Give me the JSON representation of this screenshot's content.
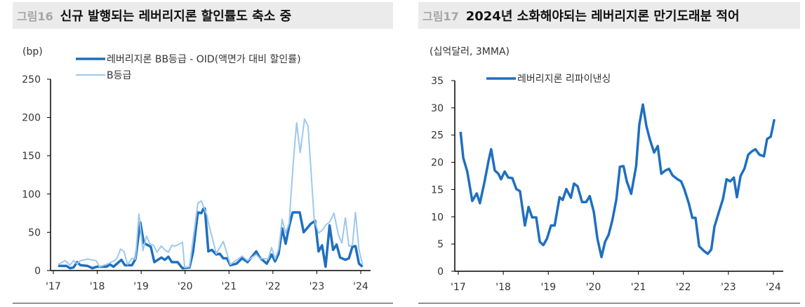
{
  "chart_data": [
    {
      "type": "line",
      "figure_label": "그림16",
      "title": "신규 발행되는 레버리지론 할인률도 축소 중",
      "unit": "(bp)",
      "ylim": [
        0,
        250
      ],
      "yticks": [
        0,
        50,
        100,
        150,
        200,
        250
      ],
      "xlim": [
        2017,
        2024
      ],
      "xticks": [
        2017,
        2018,
        2019,
        2020,
        2021,
        2022,
        2023,
        2024
      ],
      "xtick_labels": [
        "'17",
        "'18",
        "'19",
        "'20",
        "'21",
        "'22",
        "'23",
        "'24"
      ],
      "legend": "top-left",
      "grid": false,
      "series": [
        {
          "name": "레버리지론 BB등급 - OID(액면가 대비 할인률)",
          "color": "#1f6fbf",
          "width": 3.5,
          "points": [
            [
              2017.11,
              6
            ],
            [
              2017.3,
              6
            ],
            [
              2017.38,
              3
            ],
            [
              2017.46,
              4
            ],
            [
              2017.54,
              11
            ],
            [
              2017.62,
              7
            ],
            [
              2017.78,
              6
            ],
            [
              2017.89,
              3
            ],
            [
              2017.99,
              5
            ],
            [
              2018.21,
              5
            ],
            [
              2018.29,
              8
            ],
            [
              2018.37,
              5
            ],
            [
              2018.55,
              14
            ],
            [
              2018.63,
              7
            ],
            [
              2018.79,
              7
            ],
            [
              2018.87,
              15
            ],
            [
              2018.98,
              63
            ],
            [
              2019.06,
              36
            ],
            [
              2019.22,
              31
            ],
            [
              2019.3,
              11
            ],
            [
              2019.38,
              14
            ],
            [
              2019.46,
              17
            ],
            [
              2019.54,
              14
            ],
            [
              2019.62,
              18
            ],
            [
              2019.7,
              11
            ],
            [
              2019.83,
              11
            ],
            [
              2019.94,
              3
            ],
            [
              2020.1,
              4
            ],
            [
              2020.18,
              24
            ],
            [
              2020.29,
              76
            ],
            [
              2020.37,
              75
            ],
            [
              2020.42,
              81
            ],
            [
              2020.45,
              81
            ],
            [
              2020.53,
              25
            ],
            [
              2020.61,
              27
            ],
            [
              2020.71,
              21
            ],
            [
              2020.79,
              22
            ],
            [
              2020.87,
              16
            ],
            [
              2020.95,
              16
            ],
            [
              2021.03,
              7
            ],
            [
              2021.17,
              9
            ],
            [
              2021.3,
              16
            ],
            [
              2021.42,
              11
            ],
            [
              2021.62,
              25
            ],
            [
              2021.7,
              17
            ],
            [
              2021.86,
              9
            ],
            [
              2021.97,
              21
            ],
            [
              2022.05,
              12
            ],
            [
              2022.13,
              22
            ],
            [
              2022.21,
              55
            ],
            [
              2022.29,
              35
            ],
            [
              2022.37,
              58
            ],
            [
              2022.45,
              76
            ],
            [
              2022.61,
              76
            ],
            [
              2022.7,
              50
            ],
            [
              2022.86,
              61
            ],
            [
              2022.96,
              65
            ],
            [
              2023.04,
              25
            ],
            [
              2023.12,
              33
            ],
            [
              2023.2,
              5
            ],
            [
              2023.29,
              59
            ],
            [
              2023.37,
              27
            ],
            [
              2023.45,
              34
            ],
            [
              2023.53,
              17
            ],
            [
              2023.65,
              14
            ],
            [
              2023.73,
              16
            ],
            [
              2023.81,
              31
            ],
            [
              2023.88,
              32
            ],
            [
              2023.96,
              9
            ],
            [
              2024.04,
              5
            ]
          ]
        },
        {
          "name": "B등급",
          "color": "#9dc8ee",
          "width": 2,
          "points": [
            [
              2017.11,
              8
            ],
            [
              2017.27,
              13
            ],
            [
              2017.38,
              7
            ],
            [
              2017.46,
              13
            ],
            [
              2017.54,
              9
            ],
            [
              2017.62,
              13
            ],
            [
              2017.78,
              15
            ],
            [
              2017.97,
              13
            ],
            [
              2018.05,
              5
            ],
            [
              2018.21,
              8
            ],
            [
              2018.39,
              13
            ],
            [
              2018.45,
              16
            ],
            [
              2018.53,
              28
            ],
            [
              2018.61,
              25
            ],
            [
              2018.69,
              8
            ],
            [
              2018.79,
              16
            ],
            [
              2018.87,
              15
            ],
            [
              2018.95,
              74
            ],
            [
              2019.04,
              26
            ],
            [
              2019.12,
              45
            ],
            [
              2019.2,
              35
            ],
            [
              2019.28,
              33
            ],
            [
              2019.36,
              24
            ],
            [
              2019.46,
              32
            ],
            [
              2019.54,
              27
            ],
            [
              2019.62,
              24
            ],
            [
              2019.7,
              33
            ],
            [
              2019.78,
              32
            ],
            [
              2019.94,
              37
            ],
            [
              2019.99,
              4
            ],
            [
              2020.1,
              5
            ],
            [
              2020.29,
              88
            ],
            [
              2020.37,
              91
            ],
            [
              2020.5,
              72
            ],
            [
              2020.53,
              62
            ],
            [
              2020.61,
              45
            ],
            [
              2020.71,
              22
            ],
            [
              2020.87,
              38
            ],
            [
              2021.03,
              8
            ],
            [
              2021.3,
              19
            ],
            [
              2021.42,
              13
            ],
            [
              2021.62,
              21
            ],
            [
              2021.7,
              16
            ],
            [
              2021.89,
              15
            ],
            [
              2021.97,
              30
            ],
            [
              2022.05,
              15
            ],
            [
              2022.13,
              28
            ],
            [
              2022.21,
              67
            ],
            [
              2022.29,
              49
            ],
            [
              2022.37,
              62
            ],
            [
              2022.46,
              138
            ],
            [
              2022.54,
              193
            ],
            [
              2022.62,
              154
            ],
            [
              2022.72,
              198
            ],
            [
              2022.8,
              189
            ],
            [
              2022.94,
              67
            ],
            [
              2023.04,
              49
            ],
            [
              2023.13,
              53
            ],
            [
              2023.21,
              60
            ],
            [
              2023.29,
              63
            ],
            [
              2023.39,
              75
            ],
            [
              2023.49,
              47
            ],
            [
              2023.57,
              36
            ],
            [
              2023.65,
              69
            ],
            [
              2023.73,
              32
            ],
            [
              2023.81,
              33
            ],
            [
              2023.88,
              76
            ],
            [
              2023.96,
              27
            ],
            [
              2024.04,
              8
            ]
          ]
        }
      ]
    },
    {
      "type": "line",
      "figure_label": "그림17",
      "title": "2024년 소화해야되는 레버리지론 만기도래분 적어",
      "unit": "(십억달러,  3MMA)",
      "ylim": [
        0,
        35
      ],
      "yticks": [
        0,
        5,
        10,
        15,
        20,
        25,
        30,
        35
      ],
      "xlim": [
        2017,
        2024
      ],
      "xticks": [
        2017,
        2018,
        2019,
        2020,
        2021,
        2022,
        2023,
        2024
      ],
      "xtick_labels": [
        "'17",
        "'18",
        "'19",
        "'20",
        "'21",
        "'22",
        "'23",
        "'24"
      ],
      "legend": "top-left",
      "grid": false,
      "series": [
        {
          "name": "레버리지론 리파이낸싱",
          "color": "#1f6fbf",
          "width": 3.5,
          "points": [
            [
              2017.05,
              25.6
            ],
            [
              2017.11,
              20.8
            ],
            [
              2017.2,
              18.3
            ],
            [
              2017.31,
              12.9
            ],
            [
              2017.41,
              14.3
            ],
            [
              2017.48,
              12.5
            ],
            [
              2017.58,
              16.3
            ],
            [
              2017.67,
              20.2
            ],
            [
              2017.73,
              22.4
            ],
            [
              2017.81,
              18.5
            ],
            [
              2017.89,
              17.9
            ],
            [
              2017.95,
              16.9
            ],
            [
              2018.03,
              18.3
            ],
            [
              2018.11,
              17.2
            ],
            [
              2018.2,
              17.1
            ],
            [
              2018.29,
              15.1
            ],
            [
              2018.37,
              14.7
            ],
            [
              2018.48,
              8.4
            ],
            [
              2018.56,
              11.8
            ],
            [
              2018.64,
              9.9
            ],
            [
              2018.73,
              9.9
            ],
            [
              2018.81,
              5.4
            ],
            [
              2018.89,
              4.8
            ],
            [
              2018.97,
              6.0
            ],
            [
              2019.06,
              8.4
            ],
            [
              2019.14,
              8.4
            ],
            [
              2019.25,
              13.6
            ],
            [
              2019.32,
              13.1
            ],
            [
              2019.4,
              15.1
            ],
            [
              2019.5,
              13.5
            ],
            [
              2019.57,
              16.1
            ],
            [
              2019.65,
              15.6
            ],
            [
              2019.75,
              12.7
            ],
            [
              2019.84,
              12.7
            ],
            [
              2019.92,
              13.8
            ],
            [
              2020.01,
              10.9
            ],
            [
              2020.09,
              6.0
            ],
            [
              2020.18,
              2.6
            ],
            [
              2020.26,
              5.4
            ],
            [
              2020.34,
              6.7
            ],
            [
              2020.42,
              9.3
            ],
            [
              2020.51,
              13.1
            ],
            [
              2020.59,
              19.2
            ],
            [
              2020.67,
              19.3
            ],
            [
              2020.74,
              16.6
            ],
            [
              2020.84,
              14.2
            ],
            [
              2020.95,
              19.3
            ],
            [
              2021.02,
              26.9
            ],
            [
              2021.1,
              30.6
            ],
            [
              2021.18,
              26.6
            ],
            [
              2021.26,
              24.1
            ],
            [
              2021.35,
              21.8
            ],
            [
              2021.43,
              23.0
            ],
            [
              2021.51,
              17.9
            ],
            [
              2021.6,
              18.5
            ],
            [
              2021.68,
              18.8
            ],
            [
              2021.76,
              17.6
            ],
            [
              2021.87,
              16.9
            ],
            [
              2021.95,
              16.5
            ],
            [
              2022.02,
              15.1
            ],
            [
              2022.12,
              12.5
            ],
            [
              2022.2,
              9.8
            ],
            [
              2022.27,
              9.8
            ],
            [
              2022.35,
              4.6
            ],
            [
              2022.46,
              3.7
            ],
            [
              2022.54,
              3.2
            ],
            [
              2022.62,
              4.0
            ],
            [
              2022.69,
              8.2
            ],
            [
              2022.79,
              10.9
            ],
            [
              2022.88,
              13.3
            ],
            [
              2022.96,
              16.9
            ],
            [
              2023.04,
              16.5
            ],
            [
              2023.12,
              17.2
            ],
            [
              2023.19,
              13.6
            ],
            [
              2023.27,
              17.5
            ],
            [
              2023.36,
              18.9
            ],
            [
              2023.44,
              21.4
            ],
            [
              2023.52,
              22.0
            ],
            [
              2023.6,
              22.4
            ],
            [
              2023.69,
              21.4
            ],
            [
              2023.79,
              21.1
            ],
            [
              2023.86,
              24.3
            ],
            [
              2023.94,
              24.7
            ],
            [
              2024.02,
              27.9
            ]
          ]
        }
      ]
    }
  ]
}
